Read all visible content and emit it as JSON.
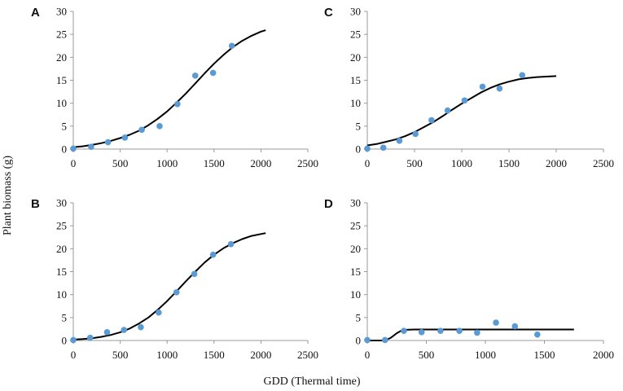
{
  "figure": {
    "ylabel": "Plant biomass (g)",
    "xlabel": "GDD (Thermal time)"
  },
  "chart_data": [
    {
      "type": "scatter",
      "panel": "A",
      "xlim": [
        0,
        2500
      ],
      "ylim": [
        0,
        30
      ],
      "xticks": [
        0,
        500,
        1000,
        1500,
        2000,
        2500
      ],
      "yticks": [
        0,
        5,
        10,
        15,
        20,
        25,
        30
      ],
      "points": {
        "x": [
          0,
          190,
          370,
          550,
          730,
          920,
          1110,
          1300,
          1490,
          1690
        ],
        "y": [
          0.1,
          0.5,
          1.5,
          2.5,
          4.2,
          5.0,
          9.8,
          16.0,
          16.6,
          22.5
        ]
      },
      "fit": {
        "x": [
          0,
          100,
          200,
          300,
          400,
          500,
          600,
          700,
          800,
          900,
          1000,
          1100,
          1200,
          1300,
          1400,
          1500,
          1600,
          1700,
          1800,
          1900,
          2000,
          2050
        ],
        "y": [
          0.4,
          0.6,
          0.9,
          1.3,
          1.8,
          2.4,
          3.1,
          4.0,
          5.2,
          6.6,
          8.2,
          10.1,
          12.1,
          14.3,
          16.5,
          18.6,
          20.5,
          22.2,
          23.6,
          24.7,
          25.6,
          25.9
        ]
      }
    },
    {
      "type": "scatter",
      "panel": "B",
      "xlim": [
        0,
        2500
      ],
      "ylim": [
        0,
        30
      ],
      "xticks": [
        0,
        500,
        1000,
        1500,
        2000,
        2500
      ],
      "yticks": [
        0,
        5,
        10,
        15,
        20,
        25,
        30
      ],
      "points": {
        "x": [
          0,
          180,
          360,
          540,
          720,
          910,
          1100,
          1290,
          1490,
          1680
        ],
        "y": [
          0.1,
          0.6,
          1.8,
          2.3,
          2.9,
          6.1,
          10.5,
          14.5,
          18.7,
          21.0
        ]
      },
      "fit": {
        "x": [
          0,
          100,
          200,
          300,
          400,
          500,
          600,
          700,
          800,
          900,
          1000,
          1100,
          1200,
          1300,
          1400,
          1500,
          1600,
          1700,
          1800,
          1900,
          2000,
          2050
        ],
        "y": [
          0.2,
          0.3,
          0.5,
          0.8,
          1.2,
          1.8,
          2.6,
          3.7,
          5.0,
          6.7,
          8.6,
          10.7,
          12.9,
          15.0,
          17.0,
          18.7,
          20.1,
          21.2,
          22.1,
          22.8,
          23.2,
          23.4
        ]
      }
    },
    {
      "type": "scatter",
      "panel": "C",
      "xlim": [
        0,
        2500
      ],
      "ylim": [
        0,
        30
      ],
      "xticks": [
        0,
        500,
        1000,
        1500,
        2000,
        2500
      ],
      "yticks": [
        0,
        5,
        10,
        15,
        20,
        25,
        30
      ],
      "points": {
        "x": [
          0,
          170,
          340,
          510,
          680,
          850,
          1030,
          1220,
          1400,
          1640
        ],
        "y": [
          0.1,
          0.3,
          1.8,
          3.3,
          6.3,
          8.4,
          10.6,
          13.6,
          13.2,
          16.1
        ]
      },
      "fit": {
        "x": [
          0,
          100,
          200,
          300,
          400,
          500,
          600,
          700,
          800,
          900,
          1000,
          1100,
          1200,
          1300,
          1400,
          1500,
          1600,
          1700,
          1800,
          1900,
          2000
        ],
        "y": [
          0.8,
          1.1,
          1.6,
          2.1,
          2.8,
          3.7,
          4.8,
          5.9,
          7.2,
          8.6,
          9.9,
          11.1,
          12.3,
          13.3,
          14.1,
          14.7,
          15.2,
          15.5,
          15.7,
          15.8,
          15.9
        ]
      }
    },
    {
      "type": "scatter",
      "panel": "D",
      "xlim": [
        0,
        2000
      ],
      "ylim": [
        0,
        30
      ],
      "xticks": [
        0,
        500,
        1000,
        1500,
        2000
      ],
      "yticks": [
        0,
        5,
        10,
        15,
        20,
        25,
        30
      ],
      "points": {
        "x": [
          0,
          150,
          310,
          460,
          620,
          780,
          930,
          1090,
          1250,
          1440
        ],
        "y": [
          0.1,
          0.1,
          2.1,
          1.8,
          2.1,
          2.1,
          1.7,
          3.9,
          3.1,
          1.3
        ]
      },
      "fit": {
        "x": [
          0,
          150,
          200,
          250,
          300,
          400,
          600,
          1000,
          1400,
          1750
        ],
        "y": [
          0.0,
          0.0,
          0.6,
          1.6,
          2.3,
          2.4,
          2.4,
          2.4,
          2.4,
          2.4
        ]
      }
    }
  ]
}
